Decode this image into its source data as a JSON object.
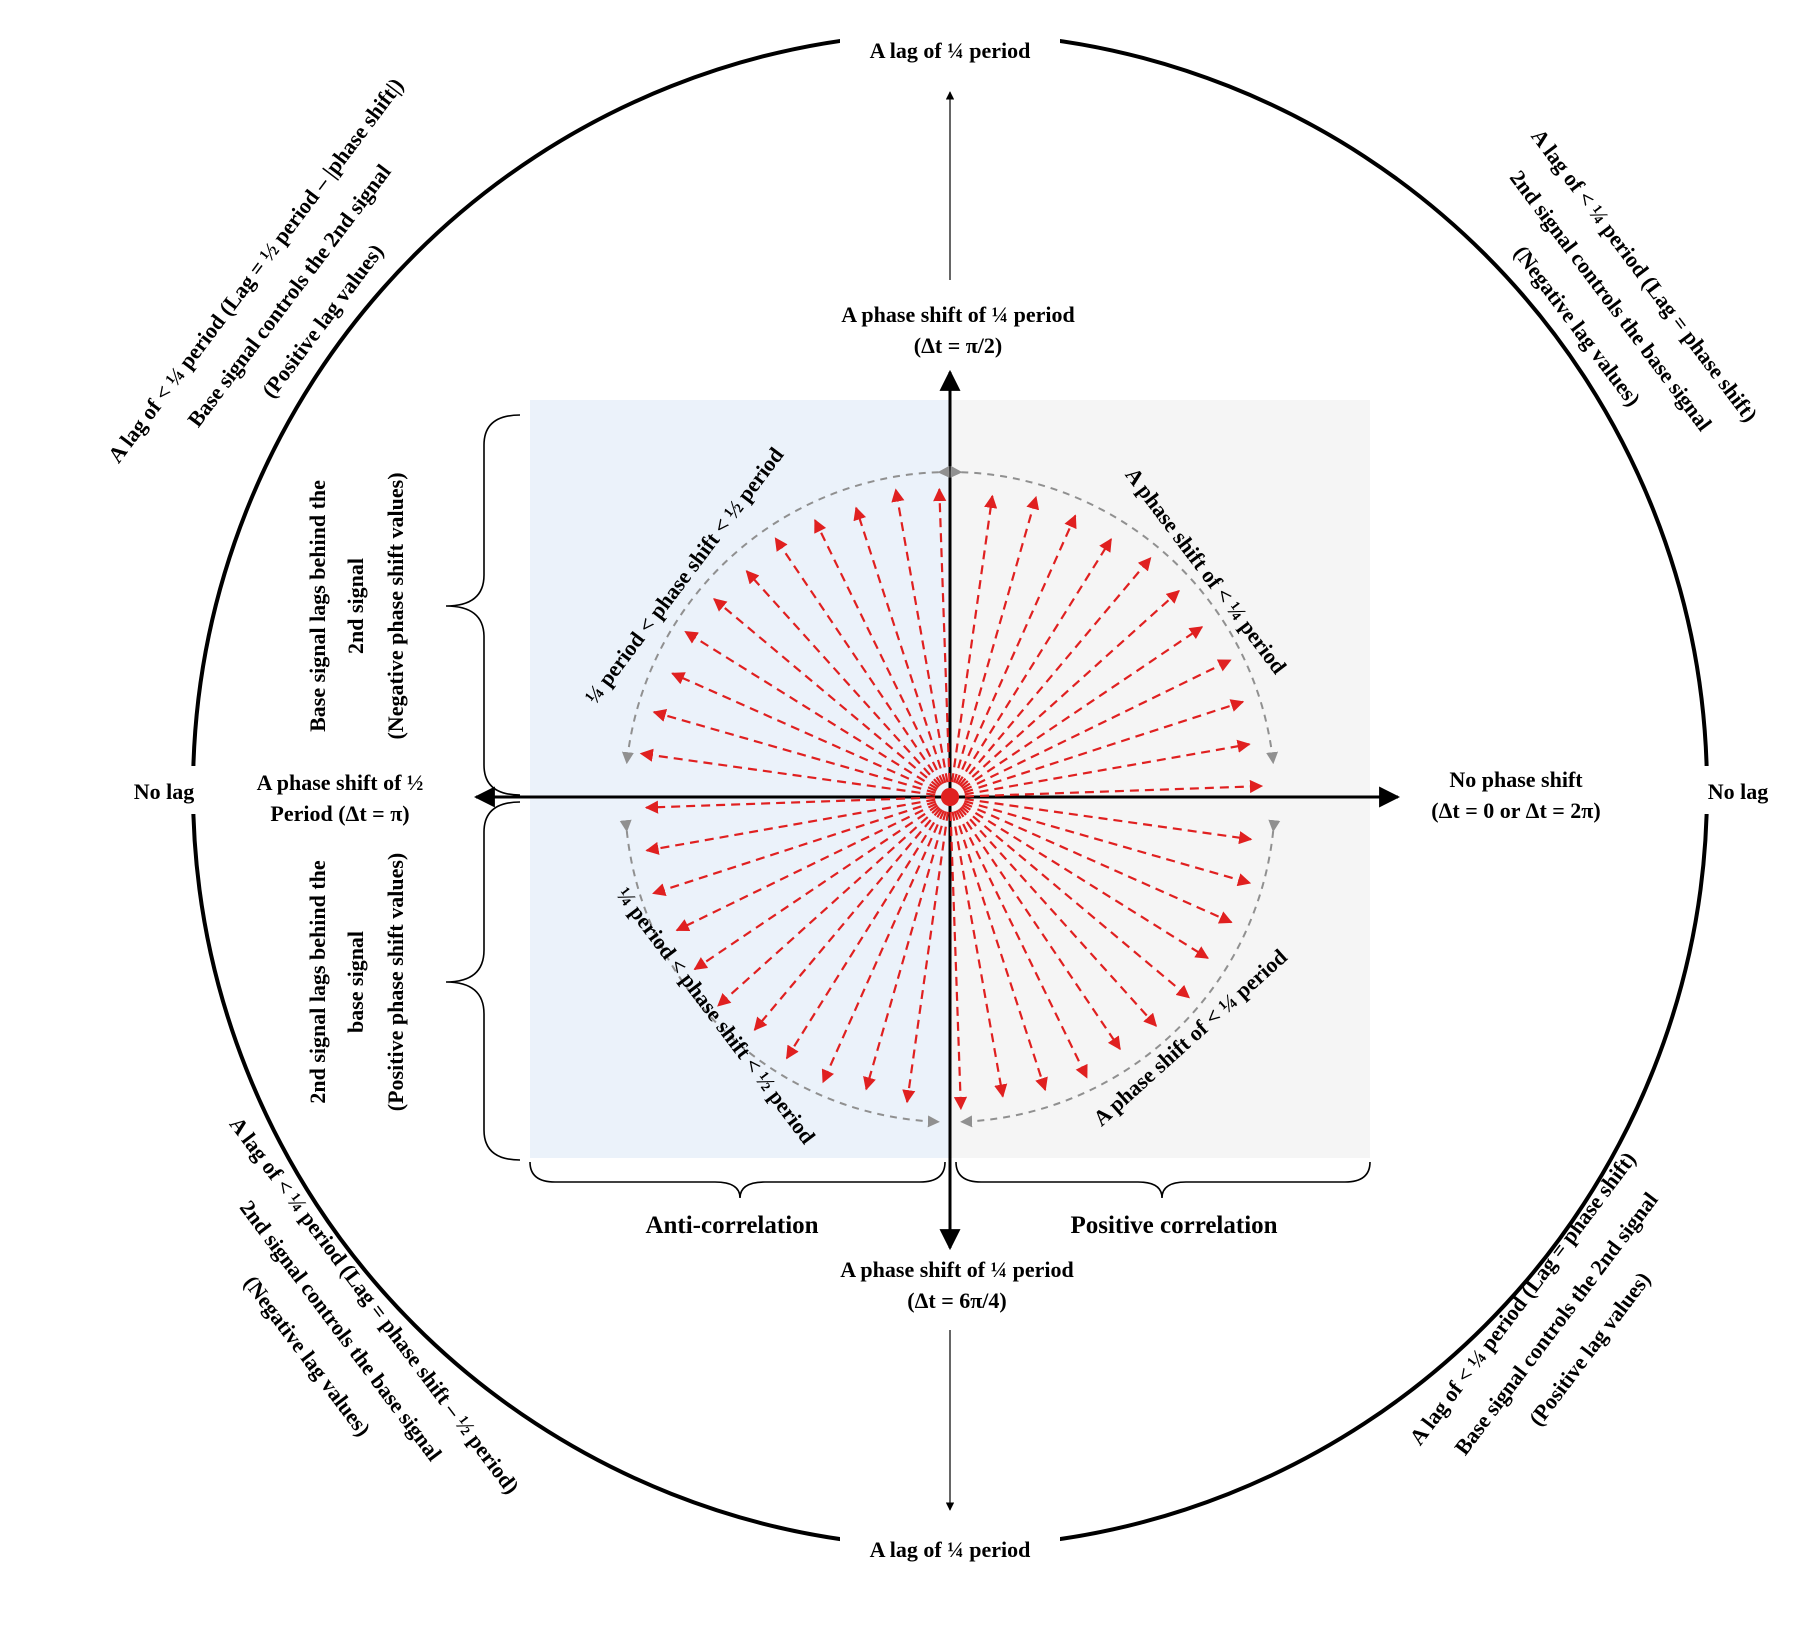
{
  "outer_circle": {
    "top_label": "A lag of ¼ period",
    "bottom_label": "A lag of ¼ period",
    "left_label": "No lag",
    "right_label": "No lag",
    "upper_left_lines": [
      "A lag of < ¼ period (Lag = ½ period – |phase shift|)",
      "Base signal controls the 2nd signal",
      "(Positive lag values)"
    ],
    "upper_right_lines": [
      "A lag of < ¼ period (Lag = phase shift)",
      "2nd signal controls the base signal",
      "(Negative lag values)"
    ],
    "lower_left_lines": [
      "A lag of < ¼ period (Lag = phase shift – ½ period)",
      "2nd signal controls the base signal",
      "(Negative lag values)"
    ],
    "lower_right_lines": [
      "A lag of < ¼ period (Lag = phase shift)",
      "Base signal controls the 2nd signal",
      "(Positive lag values)"
    ]
  },
  "axes": {
    "top_line1": "A phase shift of ¼ period",
    "top_line2": "(Δt = π/2)",
    "bottom_line1": "A phase shift of ¼ period",
    "bottom_line2": "(Δt = 6π/4)",
    "left_line1": "A phase shift of ½",
    "left_line2": "Period (Δt = π)",
    "right_line1": "No phase shift",
    "right_line2": "(Δt = 0 or Δt = 2π)"
  },
  "quadrant_labels": {
    "upper_left": "¼ period < phase shift < ½ period",
    "upper_right": "A phase shift of < ¼ period",
    "lower_left": "¼ period < phase shift < ½ period",
    "lower_right": "A phase shift of < ¼ period"
  },
  "side_brackets": {
    "upper_lines": [
      "Base signal lags behind the",
      "2nd signal",
      "(Negative phase shift values)"
    ],
    "lower_lines": [
      "2nd signal lags behind the",
      "base signal",
      "(Positive phase shift values)"
    ]
  },
  "bottom_brackets": {
    "left": "Anti-correlation",
    "right": "Positive correlation"
  },
  "colors": {
    "left_panel": "#ebf2fa",
    "right_panel": "#f5f5f5",
    "arrow_red": "#e02020",
    "arc_gray": "#909090",
    "axis": "#000000"
  }
}
